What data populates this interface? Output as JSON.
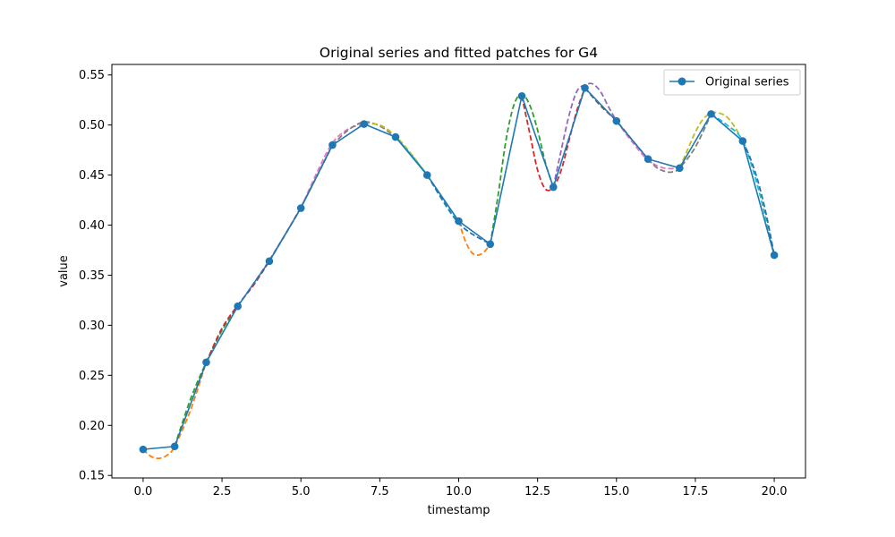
{
  "chart_data": {
    "type": "line",
    "title": "Original series and fitted patches for G4",
    "xlabel": "timestamp",
    "ylabel": "value",
    "xlim": [
      -0.99,
      20.99
    ],
    "ylim": [
      0.1475,
      0.5605
    ],
    "xticks": [
      0.0,
      2.5,
      5.0,
      7.5,
      10.0,
      12.5,
      15.0,
      17.5,
      20.0
    ],
    "xtick_labels": [
      "0.0",
      "2.5",
      "5.0",
      "7.5",
      "10.0",
      "12.5",
      "15.0",
      "17.5",
      "20.0"
    ],
    "yticks": [
      0.15,
      0.2,
      0.25,
      0.3,
      0.35,
      0.4,
      0.45,
      0.5,
      0.55
    ],
    "ytick_labels": [
      "0.15",
      "0.20",
      "0.25",
      "0.30",
      "0.35",
      "0.40",
      "0.45",
      "0.50",
      "0.55"
    ],
    "grid": false,
    "legend": {
      "placement": "top-right",
      "entries": [
        "Original series"
      ]
    },
    "series": [
      {
        "name": "Original series",
        "color": "#1f77b4",
        "marker": "circle",
        "x": [
          0,
          1,
          2,
          3,
          4,
          5,
          6,
          7,
          8,
          9,
          10,
          11,
          12,
          13,
          14,
          15,
          16,
          17,
          18,
          19,
          20
        ],
        "values": [
          0.176,
          0.179,
          0.263,
          0.319,
          0.364,
          0.417,
          0.48,
          0.501,
          0.488,
          0.45,
          0.404,
          0.381,
          0.529,
          0.438,
          0.537,
          0.504,
          0.466,
          0.457,
          0.511,
          0.484,
          0.37
        ]
      }
    ],
    "fitted_patches": [
      {
        "color": "#ff7f0e",
        "x": [
          0,
          0.25,
          0.5,
          0.75,
          1.0,
          1.5,
          2.0
        ],
        "values": [
          0.176,
          0.169,
          0.167,
          0.17,
          0.179,
          0.215,
          0.263
        ]
      },
      {
        "color": "#2ca02c",
        "x": [
          1.0,
          1.5,
          2.0,
          2.5,
          3.0
        ],
        "values": [
          0.179,
          0.226,
          0.263,
          0.295,
          0.319
        ]
      },
      {
        "color": "#d62728",
        "x": [
          2.0,
          2.5,
          3.0,
          3.5,
          4.0
        ],
        "values": [
          0.263,
          0.297,
          0.32,
          0.34,
          0.364
        ]
      },
      {
        "color": "#9467bd",
        "x": [
          3.0,
          4.0,
          5.0
        ],
        "values": [
          0.319,
          0.365,
          0.417
        ]
      },
      {
        "color": "#8c564b",
        "x": [
          4.0,
          5.0,
          6.0
        ],
        "values": [
          0.364,
          0.418,
          0.48
        ]
      },
      {
        "color": "#e377c2",
        "x": [
          5.0,
          5.5,
          6.0,
          6.5,
          7.0
        ],
        "values": [
          0.417,
          0.452,
          0.482,
          0.496,
          0.501
        ]
      },
      {
        "color": "#7f7f7f",
        "x": [
          6.0,
          6.5,
          7.0,
          7.5,
          8.0
        ],
        "values": [
          0.48,
          0.495,
          0.503,
          0.499,
          0.488
        ]
      },
      {
        "color": "#bcbd22",
        "x": [
          7.0,
          7.5,
          8.0,
          8.5,
          9.0
        ],
        "values": [
          0.501,
          0.5,
          0.489,
          0.471,
          0.45
        ]
      },
      {
        "color": "#17becf",
        "x": [
          8.0,
          8.5,
          9.0,
          9.5,
          10.0
        ],
        "values": [
          0.488,
          0.47,
          0.45,
          0.426,
          0.404
        ]
      },
      {
        "color": "#1f77b4",
        "x": [
          9.0,
          10.0,
          11.0
        ],
        "values": [
          0.45,
          0.402,
          0.381
        ]
      },
      {
        "color": "#ff7f0e",
        "x": [
          10.0,
          10.2,
          10.4,
          10.6,
          10.8,
          11.0
        ],
        "values": [
          0.404,
          0.385,
          0.373,
          0.37,
          0.373,
          0.381
        ]
      },
      {
        "color": "#2ca02c",
        "x": [
          11.0,
          11.25,
          11.5,
          11.75,
          12.0,
          12.25,
          12.5,
          12.75,
          13.0
        ],
        "values": [
          0.381,
          0.43,
          0.485,
          0.52,
          0.531,
          0.52,
          0.495,
          0.462,
          0.438
        ]
      },
      {
        "color": "#d62728",
        "x": [
          12.0,
          12.25,
          12.5,
          12.75,
          13.0,
          13.25,
          13.5,
          13.75,
          14.0
        ],
        "values": [
          0.529,
          0.492,
          0.455,
          0.436,
          0.438,
          0.455,
          0.485,
          0.515,
          0.537
        ]
      },
      {
        "color": "#9467bd",
        "x": [
          13.0,
          13.25,
          13.5,
          13.75,
          14.0,
          14.25,
          14.5,
          14.75,
          15.0
        ],
        "values": [
          0.438,
          0.475,
          0.51,
          0.534,
          0.54,
          0.541,
          0.533,
          0.518,
          0.504
        ]
      },
      {
        "color": "#8c564b",
        "x": [
          14.0,
          14.5,
          15.0,
          15.5,
          16.0
        ],
        "values": [
          0.537,
          0.519,
          0.504,
          0.485,
          0.466
        ]
      },
      {
        "color": "#e377c2",
        "x": [
          15.0,
          15.5,
          16.0,
          16.5,
          17.0
        ],
        "values": [
          0.504,
          0.483,
          0.465,
          0.457,
          0.457
        ]
      },
      {
        "color": "#7f7f7f",
        "x": [
          16.0,
          16.25,
          16.5,
          16.75,
          17.0,
          17.5,
          18.0
        ],
        "values": [
          0.466,
          0.458,
          0.454,
          0.453,
          0.457,
          0.478,
          0.511
        ]
      },
      {
        "color": "#bcbd22",
        "x": [
          17.0,
          17.25,
          17.5,
          17.75,
          18.0,
          18.25,
          18.5,
          18.75,
          19.0
        ],
        "values": [
          0.457,
          0.475,
          0.493,
          0.506,
          0.512,
          0.512,
          0.508,
          0.498,
          0.484
        ]
      },
      {
        "color": "#17becf",
        "x": [
          18.0,
          18.5,
          19.0,
          19.5,
          20.0
        ],
        "values": [
          0.511,
          0.5,
          0.484,
          0.436,
          0.37
        ]
      },
      {
        "color": "#1f77b4",
        "x": [
          19.0,
          19.25,
          19.5,
          19.75,
          20.0
        ],
        "values": [
          0.484,
          0.466,
          0.442,
          0.41,
          0.37
        ]
      }
    ]
  }
}
